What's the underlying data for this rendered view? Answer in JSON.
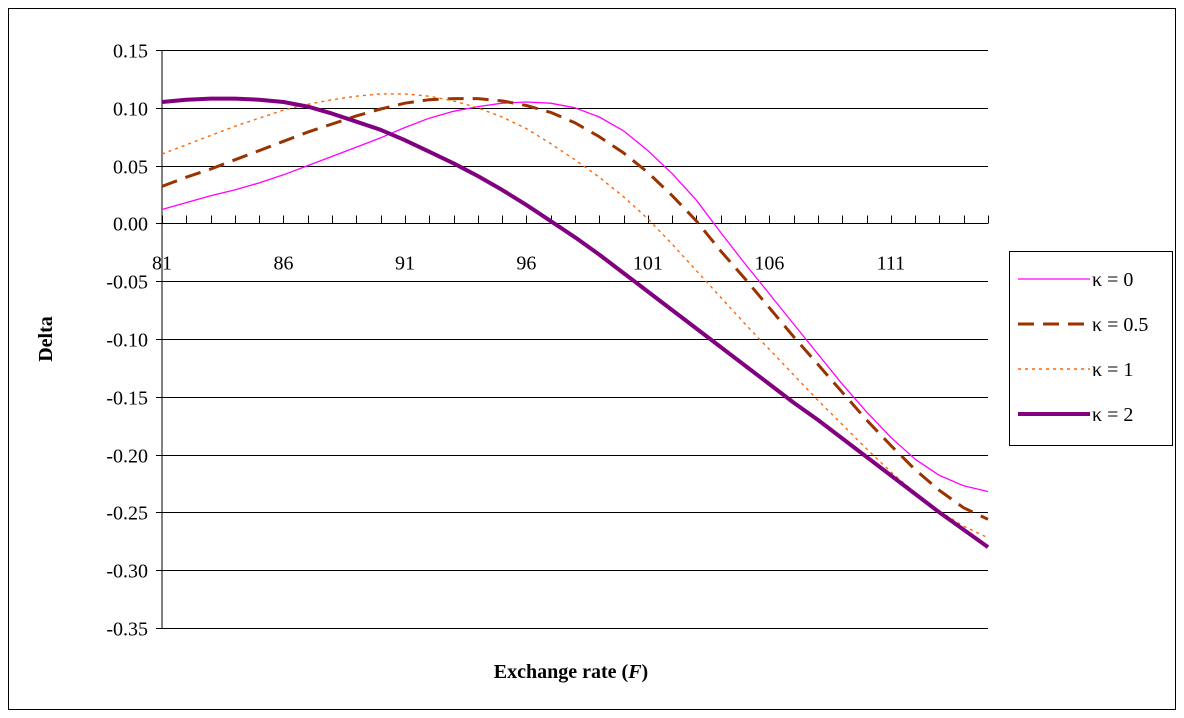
{
  "chart_data": {
    "type": "line",
    "title": "",
    "xlabel_prefix": "Exchange rate (",
    "xlabel_var": "F",
    "xlabel_suffix": ")",
    "ylabel": "Delta",
    "xlim": [
      81,
      115
    ],
    "ylim": [
      -0.35,
      0.15
    ],
    "x_tick_labels": [
      "81",
      "86",
      "91",
      "96",
      "101",
      "106",
      "111"
    ],
    "y_tick_labels": [
      "0.15",
      "0.10",
      "0.05",
      "0.00",
      "-0.05",
      "-0.10",
      "-0.15",
      "-0.20",
      "-0.25",
      "-0.30",
      "-0.35"
    ],
    "grid": "horizontal",
    "legend_position": "right",
    "x": [
      81,
      82,
      83,
      84,
      85,
      86,
      87,
      88,
      89,
      90,
      91,
      92,
      93,
      94,
      95,
      96,
      97,
      98,
      99,
      100,
      101,
      102,
      103,
      104,
      105,
      106,
      107,
      108,
      109,
      110,
      111,
      112,
      113,
      114,
      115
    ],
    "series": [
      {
        "name": "κ = 0",
        "color": "#ff00ff",
        "style": "solid-thin",
        "values": [
          0.012,
          0.018,
          0.024,
          0.029,
          0.035,
          0.042,
          0.05,
          0.058,
          0.066,
          0.074,
          0.083,
          0.091,
          0.097,
          0.101,
          0.104,
          0.105,
          0.104,
          0.1,
          0.092,
          0.08,
          0.063,
          0.043,
          0.02,
          -0.008,
          -0.035,
          -0.061,
          -0.087,
          -0.113,
          -0.139,
          -0.163,
          -0.185,
          -0.204,
          -0.218,
          -0.227,
          -0.232
        ]
      },
      {
        "name": "κ = 0.5",
        "color": "#993300",
        "style": "dashed",
        "values": [
          0.032,
          0.04,
          0.047,
          0.055,
          0.063,
          0.071,
          0.079,
          0.086,
          0.093,
          0.099,
          0.104,
          0.107,
          0.108,
          0.108,
          0.106,
          0.102,
          0.096,
          0.087,
          0.075,
          0.061,
          0.044,
          0.024,
          0.002,
          -0.024,
          -0.048,
          -0.073,
          -0.098,
          -0.122,
          -0.146,
          -0.17,
          -0.192,
          -0.213,
          -0.231,
          -0.246,
          -0.256
        ]
      },
      {
        "name": "κ = 1",
        "color": "#ff6600",
        "style": "dotted",
        "values": [
          0.06,
          0.068,
          0.076,
          0.084,
          0.091,
          0.098,
          0.103,
          0.107,
          0.11,
          0.112,
          0.112,
          0.11,
          0.106,
          0.1,
          0.092,
          0.082,
          0.069,
          0.055,
          0.04,
          0.023,
          0.004,
          -0.018,
          -0.041,
          -0.064,
          -0.087,
          -0.109,
          -0.131,
          -0.153,
          -0.174,
          -0.195,
          -0.215,
          -0.233,
          -0.249,
          -0.262,
          -0.272
        ]
      },
      {
        "name": "κ = 2",
        "color": "#800080",
        "style": "solid-thick",
        "values": [
          0.105,
          0.107,
          0.108,
          0.108,
          0.107,
          0.105,
          0.101,
          0.095,
          0.088,
          0.081,
          0.072,
          0.062,
          0.052,
          0.041,
          0.029,
          0.016,
          0.002,
          -0.012,
          -0.027,
          -0.043,
          -0.059,
          -0.075,
          -0.091,
          -0.107,
          -0.123,
          -0.139,
          -0.155,
          -0.17,
          -0.186,
          -0.202,
          -0.218,
          -0.234,
          -0.25,
          -0.265,
          -0.28
        ]
      }
    ]
  }
}
